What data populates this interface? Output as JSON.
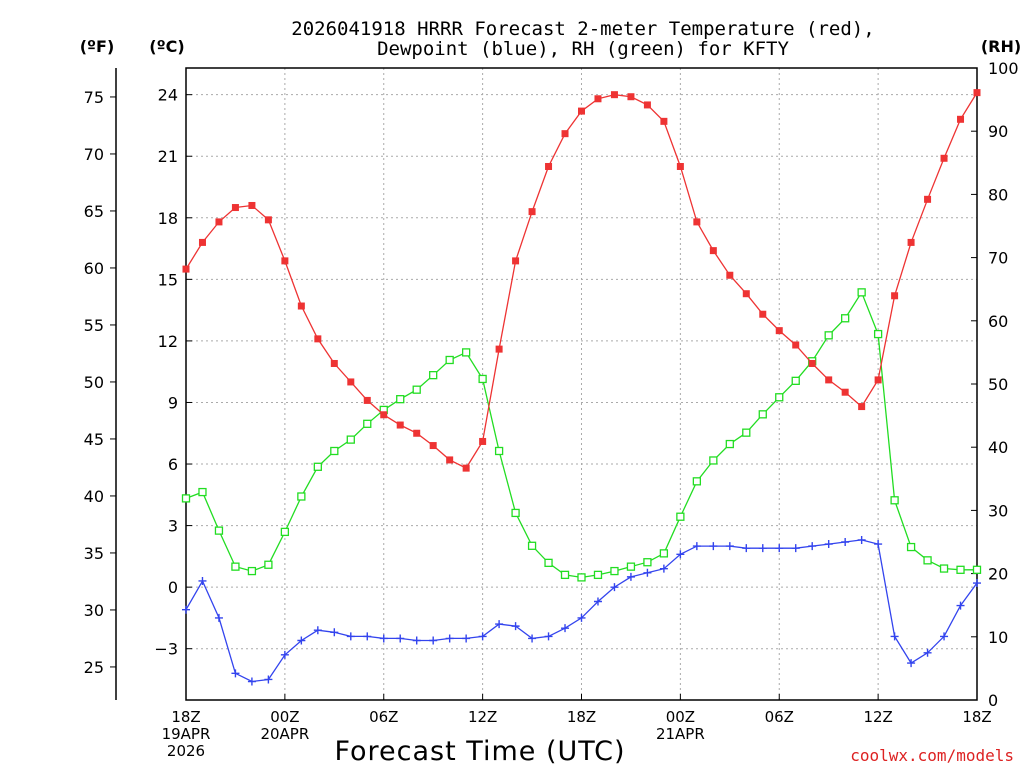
{
  "chart_data": {
    "type": "line",
    "title": [
      "2026041918 HRRR Forecast 2-meter Temperature (red),",
      "Dewpoint (blue), RH (green) for KFTY"
    ],
    "xlabel": "Forecast Time (UTC)",
    "credit": "coolwx.com/models",
    "left_axis_f": {
      "unit": "(ºF)",
      "ticks": [
        25,
        30,
        35,
        40,
        45,
        50,
        55,
        60,
        65,
        70,
        75
      ]
    },
    "left_axis_c": {
      "unit": "(ºC)",
      "range": [
        -5.5,
        25.3
      ],
      "ticks": [
        -3,
        0,
        3,
        6,
        9,
        12,
        15,
        18,
        21,
        24
      ],
      "tick_labels": [
        "−3",
        "0",
        "3",
        "6",
        "9",
        "12",
        "15",
        "18",
        "21",
        "24"
      ]
    },
    "right_axis": {
      "unit": "(RH)",
      "range": [
        0,
        100
      ],
      "ticks": [
        0,
        10,
        20,
        30,
        40,
        50,
        60,
        70,
        80,
        90,
        100
      ]
    },
    "x_range": [
      0,
      48
    ],
    "x_ticks": [
      {
        "x": 0,
        "lines": [
          "18Z",
          "19APR",
          "2026"
        ]
      },
      {
        "x": 6,
        "lines": [
          "00Z",
          "20APR"
        ]
      },
      {
        "x": 12,
        "lines": [
          "06Z"
        ]
      },
      {
        "x": 18,
        "lines": [
          "12Z"
        ]
      },
      {
        "x": 24,
        "lines": [
          "18Z"
        ]
      },
      {
        "x": 30,
        "lines": [
          "00Z",
          "21APR"
        ]
      },
      {
        "x": 36,
        "lines": [
          "06Z"
        ]
      },
      {
        "x": 42,
        "lines": [
          "12Z"
        ]
      },
      {
        "x": 48,
        "lines": [
          "18Z"
        ]
      }
    ],
    "series": [
      {
        "name": "Temperature",
        "axis": "C",
        "color": "#ee3333",
        "marker": "filled-square",
        "values": [
          15.5,
          16.8,
          17.8,
          18.5,
          18.6,
          17.9,
          15.9,
          13.7,
          12.1,
          10.9,
          10.0,
          9.1,
          8.4,
          7.9,
          7.5,
          6.9,
          6.2,
          5.8,
          7.1,
          11.6,
          15.9,
          18.3,
          20.5,
          22.1,
          23.2,
          23.8,
          24.0,
          23.9,
          23.5,
          22.7,
          20.5,
          17.8,
          16.4,
          15.2,
          14.3,
          13.3,
          12.5,
          11.8,
          10.9,
          10.1,
          9.5,
          8.8,
          10.1,
          14.2,
          16.8,
          18.9,
          20.9,
          22.8,
          24.1
        ]
      },
      {
        "name": "Dewpoint",
        "axis": "C",
        "color": "#3344ee",
        "marker": "plus",
        "values": [
          -1.1,
          0.3,
          -1.5,
          -4.2,
          -4.6,
          -4.5,
          -3.3,
          -2.6,
          -2.1,
          -2.2,
          -2.4,
          -2.4,
          -2.5,
          -2.5,
          -2.6,
          -2.6,
          -2.5,
          -2.5,
          -2.4,
          -1.8,
          -1.9,
          -2.5,
          -2.4,
          -2.0,
          -1.5,
          -0.7,
          0.0,
          0.5,
          0.7,
          0.9,
          1.6,
          2.0,
          2.0,
          2.0,
          1.9,
          1.9,
          1.9,
          1.9,
          2.0,
          2.1,
          2.2,
          2.3,
          2.1,
          -2.4,
          -3.7,
          -3.2,
          -2.4,
          -0.9,
          0.2
        ]
      },
      {
        "name": "RH",
        "axis": "RH",
        "color": "#22dd22",
        "marker": "open-square",
        "values": [
          31.9,
          32.9,
          26.8,
          21.1,
          20.4,
          21.4,
          26.6,
          32.2,
          36.9,
          39.4,
          41.2,
          43.7,
          45.9,
          47.6,
          49.1,
          51.4,
          53.8,
          55.0,
          50.8,
          39.4,
          29.6,
          24.4,
          21.7,
          19.8,
          19.4,
          19.8,
          20.4,
          21.1,
          21.8,
          23.2,
          29.0,
          34.6,
          37.9,
          40.5,
          42.3,
          45.2,
          47.9,
          50.5,
          53.6,
          57.7,
          60.4,
          64.5,
          57.9,
          31.6,
          24.2,
          22.1,
          20.8,
          20.6,
          20.6
        ]
      }
    ]
  }
}
